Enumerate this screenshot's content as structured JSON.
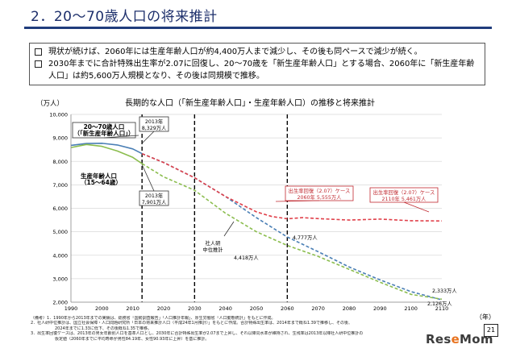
{
  "slide": {
    "title": "2．20～70歳人口の将来推計",
    "bullets": [
      "現状が続けば、2060年には生産年齢人口が約4,400万人まで減少し、その後も同ペースで減少が続く。",
      "2030年までに合計特殊出生率が2.07に回復し、20～70歳を「新生産年齢人口」とする場合、2060年に「新生産年齢人口」は約5,600万人規模となり、その後は同規模で推移。"
    ],
    "notes": [
      "（備考）1．1990年から2013年までの実績は、総務省「国勢調査報告」「人口推計年報」、厚生労働省「人口動態統計」をもとに作成。",
      "2．社人研中位推計は、国立社会保障・人口問題研究所「日本の将来推計人口（平成24年1月推計）」をもとに作成。合計特殊出生率は、2014年まで概ね1.39で推移し、その後、",
      "2024年までに1.33に低下、その後概ね1.35で推移。",
      "3．出生率回復ケースは、2013年の男女年齢別人口を基準人口とし、2030年に合計特殊出生率が2.07まで上昇し、それ以降同水準が維持され、生残率は2013年以降社人研中位推計の",
      "仮定値（2060年までに平均寿命が男性84.19年、女性90.93年に上昇）を基に推計。"
    ],
    "page_number": "21",
    "logo": {
      "part1": "Res",
      "part2": "e",
      "part3": "Mom"
    }
  },
  "chart_data": {
    "type": "line",
    "title": "長期的な人口（「新生産年齢人口」・生産年齢人口）の推移と将来推計",
    "ylabel": "（万人）",
    "xlabel": "（年）",
    "xlim": [
      1990,
      2110
    ],
    "ylim": [
      2000,
      10000
    ],
    "x_ticks": [
      1990,
      2000,
      2010,
      2020,
      2030,
      2040,
      2050,
      2060,
      2070,
      2080,
      2090,
      2100,
      2110
    ],
    "y_ticks": [
      2000,
      3000,
      4000,
      5000,
      6000,
      7000,
      8000,
      9000,
      10000
    ],
    "y_tick_labels": [
      "2,000",
      "3,000",
      "4,000",
      "5,000",
      "6,000",
      "7,000",
      "8,000",
      "9,000",
      "10,000"
    ],
    "gridlines": true,
    "vlines": [
      2013,
      2030,
      2060
    ],
    "series": [
      {
        "key": "s20to70_actual",
        "color": "#4a7fb5",
        "dash": "solid",
        "x": [
          1990,
          1995,
          2000,
          2005,
          2010,
          2013
        ],
        "y": [
          8680,
          8760,
          8770,
          8700,
          8530,
          8329
        ]
      },
      {
        "key": "s15to64_actual",
        "color": "#8bbd4e",
        "dash": "solid",
        "x": [
          1990,
          1995,
          2000,
          2005,
          2010,
          2013
        ],
        "y": [
          8590,
          8720,
          8640,
          8440,
          8170,
          7901
        ]
      },
      {
        "key": "s20to70_projection",
        "color": "#4a7fb5",
        "dash": "dashed",
        "x": [
          2013,
          2020,
          2030,
          2040,
          2050,
          2060,
          2070,
          2080,
          2090,
          2100,
          2110
        ],
        "y": [
          8329,
          7950,
          7300,
          6500,
          5600,
          4777,
          4150,
          3500,
          2950,
          2450,
          2100
        ]
      },
      {
        "key": "s15to64_projection",
        "color": "#8bbd4e",
        "dash": "dashed",
        "x": [
          2013,
          2020,
          2030,
          2040,
          2050,
          2060,
          2070,
          2080,
          2090,
          2100,
          2110
        ],
        "y": [
          7901,
          7340,
          6770,
          5790,
          5000,
          4418,
          3950,
          3400,
          2850,
          2333,
          2126
        ]
      },
      {
        "key": "recovery_case",
        "color": "#e0404a",
        "dash": "dashed",
        "x": [
          2013,
          2020,
          2030,
          2040,
          2050,
          2055,
          2060,
          2065,
          2070,
          2080,
          2090,
          2100,
          2110
        ],
        "y": [
          8329,
          7950,
          7300,
          6500,
          5850,
          5650,
          5555,
          5600,
          5560,
          5500,
          5540,
          5470,
          5461
        ]
      }
    ],
    "annotations": [
      {
        "key": "pop2070_label",
        "lines": [
          "20～70歳人口",
          "（「新生産年齢人口」）"
        ],
        "boxed": true,
        "weight": "bold"
      },
      {
        "key": "working_age_label",
        "lines": [
          "生産年齢人口",
          "（15～64歳）"
        ],
        "boxed": false,
        "weight": "bold"
      },
      {
        "key": "a2013_upper",
        "lines": [
          "2013年",
          "8,329万人"
        ],
        "boxed": true
      },
      {
        "key": "a2013_lower",
        "lines": [
          "2013年",
          "7,901万人"
        ],
        "boxed": true
      },
      {
        "key": "recovery2060",
        "lines": [
          "出生率回復（2.07）ケース",
          "2060年 5,555万人"
        ],
        "boxed": true,
        "color": "#c0282f"
      },
      {
        "key": "recovery2110",
        "lines": [
          "出生率回復（2.07）ケース",
          "2110年 5,461万人"
        ],
        "boxed": true,
        "color": "#c0282f"
      },
      {
        "key": "ipss_label",
        "lines": [
          "社人研",
          "中位推計"
        ],
        "boxed": false
      },
      {
        "key": "v4777",
        "lines": [
          "4,777万人"
        ],
        "boxed": false
      },
      {
        "key": "v4418",
        "lines": [
          "4,418万人"
        ],
        "boxed": false
      },
      {
        "key": "v2333",
        "lines": [
          "2,333万人"
        ],
        "boxed": false
      },
      {
        "key": "v2126",
        "lines": [
          "2,126万人"
        ],
        "boxed": false
      }
    ]
  }
}
